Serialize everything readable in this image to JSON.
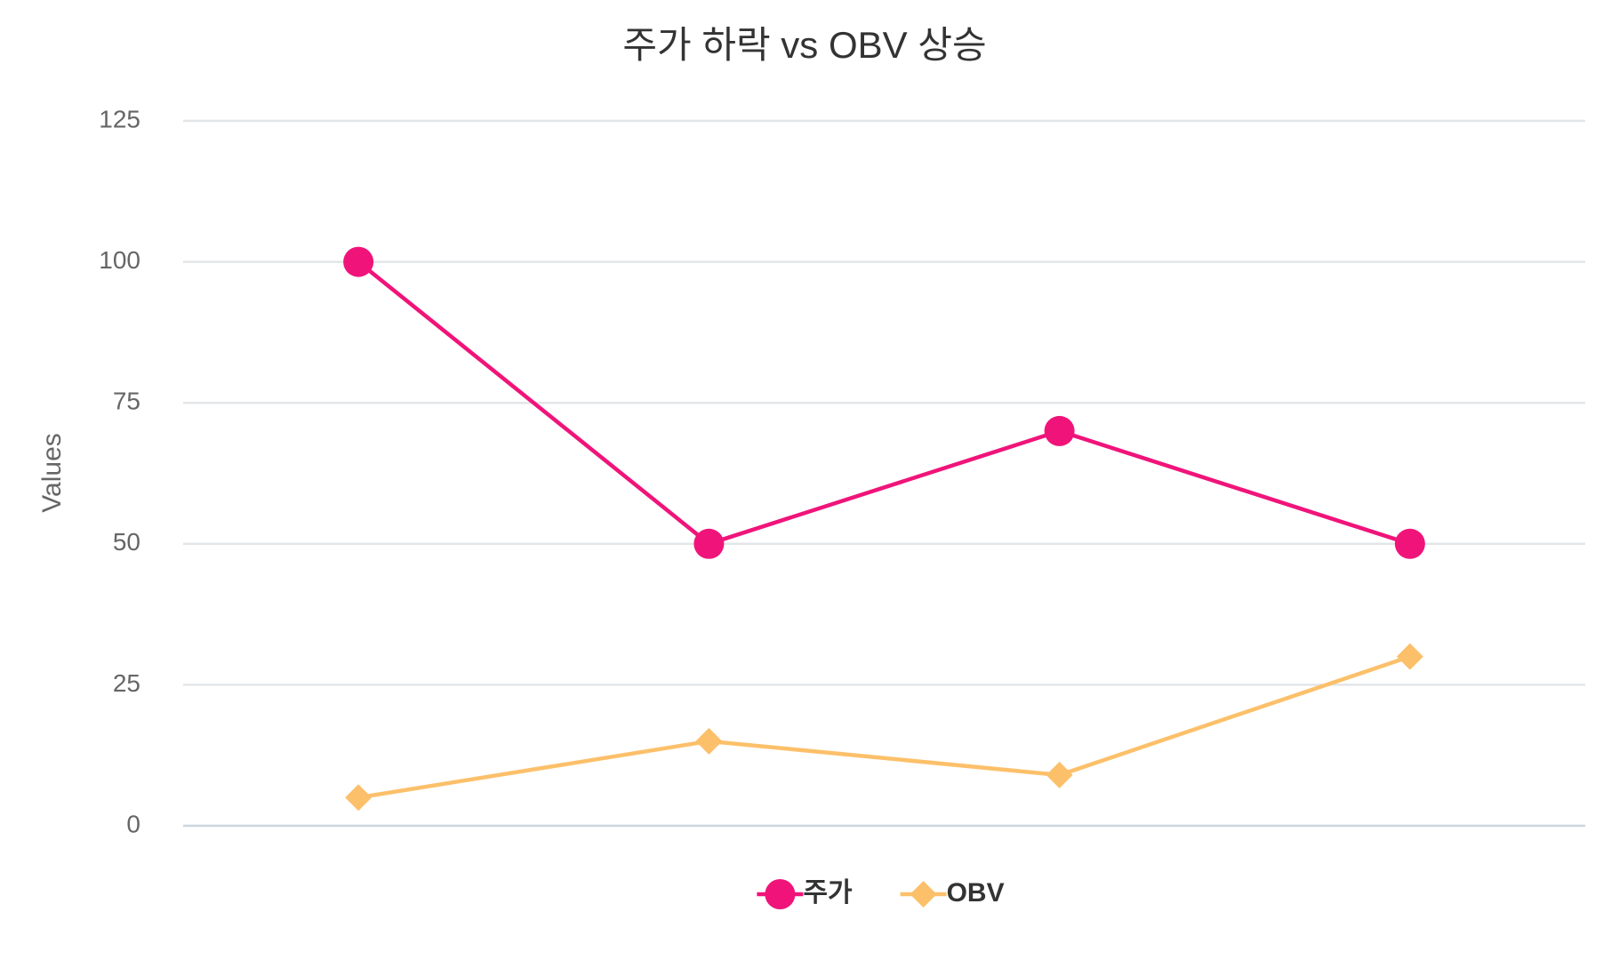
{
  "chart_data": {
    "type": "line",
    "title": "주가 하락 vs OBV 상승",
    "y_label": "Values",
    "categories": [
      null,
      null,
      null,
      null
    ],
    "series": [
      {
        "name": "주가",
        "color": "#f0147a",
        "marker": "circle",
        "values": [
          100,
          50,
          70,
          50
        ]
      },
      {
        "name": "OBV",
        "color": "#fcc06a",
        "marker": "diamond",
        "values": [
          5,
          15,
          9,
          30
        ]
      }
    ],
    "ylim": [
      0,
      125
    ],
    "yticks": [
      0,
      25,
      50,
      75,
      100,
      125
    ],
    "grid": true,
    "legend": "bottom"
  }
}
